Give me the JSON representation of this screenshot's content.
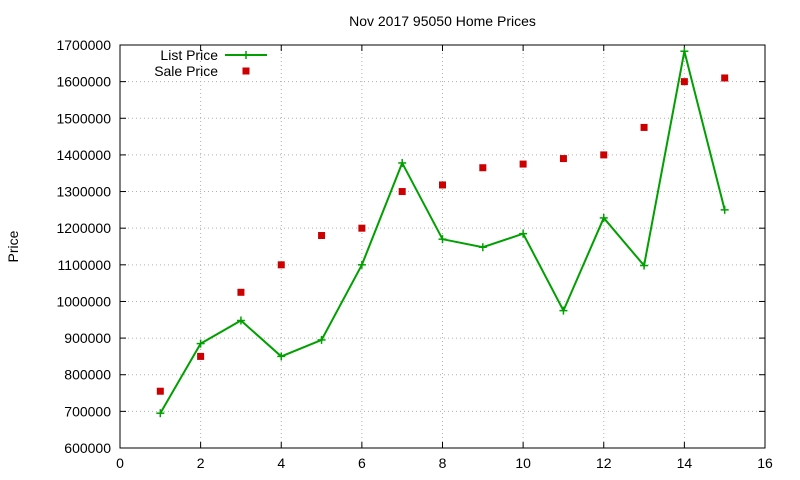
{
  "chart_data": {
    "type": "line",
    "title": "Nov 2017 95050 Home Prices",
    "xlabel": "",
    "ylabel": "Price",
    "xlim": [
      0,
      16
    ],
    "ylim": [
      600000,
      1700000
    ],
    "x_ticks": [
      0,
      2,
      4,
      6,
      8,
      10,
      12,
      14,
      16
    ],
    "y_ticks": [
      600000,
      700000,
      800000,
      900000,
      1000000,
      1100000,
      1200000,
      1300000,
      1400000,
      1500000,
      1600000,
      1700000
    ],
    "grid": true,
    "legend_position": "top-left",
    "series": [
      {
        "name": "List Price",
        "style": "line+cross",
        "color": "#00a000",
        "x": [
          1,
          2,
          3,
          4,
          5,
          6,
          7,
          8,
          9,
          10,
          11,
          12,
          13,
          14,
          15
        ],
        "y": [
          695000,
          885000,
          948000,
          850000,
          895000,
          1100000,
          1378000,
          1170000,
          1148000,
          1185000,
          975000,
          1228000,
          1098000,
          1683000,
          1250000
        ]
      },
      {
        "name": "Sale Price",
        "style": "square",
        "color": "#cc0000",
        "x": [
          1,
          2,
          3,
          4,
          5,
          6,
          7,
          8,
          9,
          10,
          11,
          12,
          13,
          14,
          15
        ],
        "y": [
          755000,
          850000,
          1025000,
          1100000,
          1180000,
          1200000,
          1300000,
          1318000,
          1365000,
          1375000,
          1390000,
          1400000,
          1475000,
          1600000,
          1610000
        ]
      }
    ]
  }
}
